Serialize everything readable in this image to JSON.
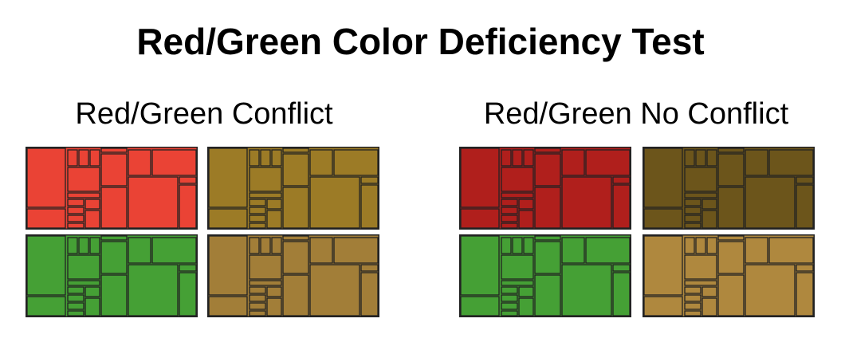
{
  "title": "Red/Green Color Deficiency Test",
  "panels": [
    {
      "heading": "Red/Green Conflict",
      "treemaps": [
        {
          "id": "conflict-red",
          "fill": "#EA4335"
        },
        {
          "id": "conflict-red-simulated",
          "fill": "#9C7B26"
        },
        {
          "id": "conflict-green",
          "fill": "#45A035"
        },
        {
          "id": "conflict-green-simulated",
          "fill": "#A27E38"
        }
      ]
    },
    {
      "heading": "Red/Green No Conflict",
      "treemaps": [
        {
          "id": "noconflict-red",
          "fill": "#B01F1C"
        },
        {
          "id": "noconflict-red-simulated",
          "fill": "#6C551B"
        },
        {
          "id": "noconflict-green",
          "fill": "#45A035"
        },
        {
          "id": "noconflict-green-simulated",
          "fill": "#AF883E"
        }
      ]
    }
  ],
  "colors": {
    "cell_border": "#222222"
  }
}
